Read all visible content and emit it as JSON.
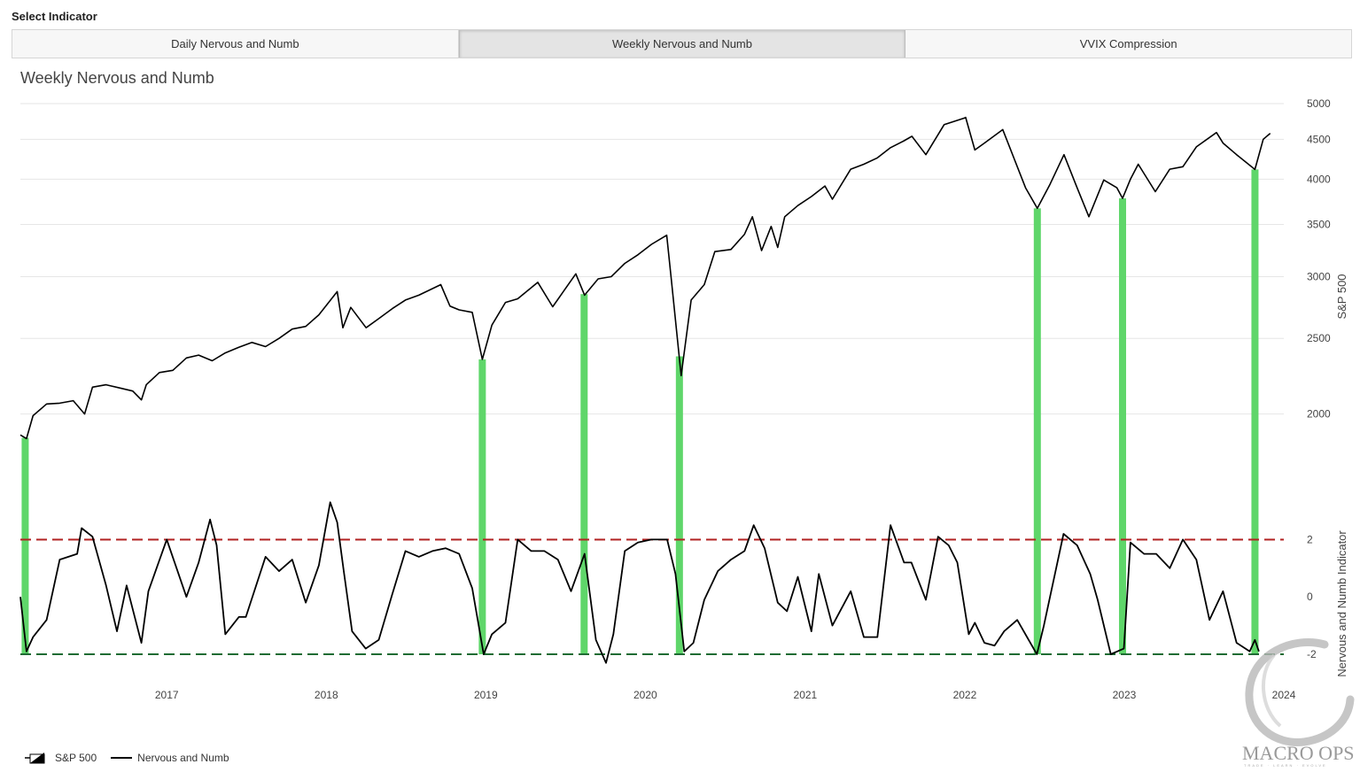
{
  "header": {
    "select_label": "Select Indicator"
  },
  "tabs": [
    {
      "label": "Daily Nervous and Numb",
      "active": false
    },
    {
      "label": "Weekly Nervous and Numb",
      "active": true
    },
    {
      "label": "VVIX Compression",
      "active": false
    }
  ],
  "legend": {
    "sp500": "S&P 500",
    "indicator": "Nervous and Numb"
  },
  "watermark": {
    "brand": "MACRO OPS",
    "tagline": "TRADE · LEARN · EVOLVE"
  },
  "colors": {
    "sp500_line": "#000000",
    "indicator_line": "#000000",
    "signal_bar": "#5fd66a",
    "upper_threshold": "#b22222",
    "lower_threshold": "#1e6b33",
    "grid": "#e6e6e6"
  },
  "chart_data": {
    "type": "line",
    "title": "Weekly Nervous and Numb",
    "y1label": "S&P 500",
    "y2label": "Nervous and Numb Indicator",
    "x_ticks": [
      "2017",
      "2018",
      "2019",
      "2020",
      "2021",
      "2022",
      "2023",
      "2024"
    ],
    "y1_ticks": [
      5000,
      4500,
      4000,
      3500,
      3000,
      2500,
      2000
    ],
    "y1_scale": "log",
    "y1lim": [
      1600,
      5000
    ],
    "y2_ticks": [
      2,
      0,
      -2
    ],
    "y2lim": [
      -2.4,
      2.6
    ],
    "xlim": [
      "2016-02-01",
      "2024-01-01"
    ],
    "thresholds": [
      {
        "value": 2,
        "style": "dashed",
        "color": "upper"
      },
      {
        "value": -2,
        "style": "dashed",
        "color": "lower"
      }
    ],
    "series": [
      {
        "name": "S&P 500",
        "x": [
          "2016-02-01",
          "2016-02-15",
          "2016-03-01",
          "2016-04-01",
          "2016-05-01",
          "2016-06-01",
          "2016-06-27",
          "2016-07-15",
          "2016-08-15",
          "2016-09-15",
          "2016-10-15",
          "2016-11-04",
          "2016-11-15",
          "2016-12-15",
          "2017-01-15",
          "2017-02-15",
          "2017-03-15",
          "2017-04-15",
          "2017-05-15",
          "2017-06-15",
          "2017-07-15",
          "2017-08-15",
          "2017-09-15",
          "2017-10-15",
          "2017-11-15",
          "2017-12-15",
          "2018-01-26",
          "2018-02-08",
          "2018-02-26",
          "2018-04-02",
          "2018-05-01",
          "2018-06-01",
          "2018-07-01",
          "2018-08-01",
          "2018-09-20",
          "2018-10-11",
          "2018-11-01",
          "2018-12-01",
          "2018-12-24",
          "2019-01-15",
          "2019-02-15",
          "2019-03-15",
          "2019-04-30",
          "2019-06-03",
          "2019-07-26",
          "2019-08-15",
          "2019-09-15",
          "2019-10-15",
          "2019-11-15",
          "2019-12-15",
          "2020-01-15",
          "2020-02-19",
          "2020-03-01",
          "2020-03-23",
          "2020-04-15",
          "2020-05-15",
          "2020-06-08",
          "2020-07-15",
          "2020-08-15",
          "2020-09-02",
          "2020-09-23",
          "2020-10-15",
          "2020-10-30",
          "2020-11-15",
          "2020-12-15",
          "2021-01-15",
          "2021-02-15",
          "2021-03-04",
          "2021-04-15",
          "2021-05-15",
          "2021-06-15",
          "2021-07-15",
          "2021-08-15",
          "2021-09-02",
          "2021-10-04",
          "2021-11-15",
          "2021-12-31",
          "2022-01-03",
          "2022-01-24",
          "2022-02-15",
          "2022-03-29",
          "2022-05-20",
          "2022-06-16",
          "2022-07-15",
          "2022-08-16",
          "2022-09-15",
          "2022-10-12",
          "2022-11-15",
          "2022-12-15",
          "2022-12-28",
          "2023-01-15",
          "2023-02-02",
          "2023-03-13",
          "2023-04-15",
          "2023-05-15",
          "2023-06-15",
          "2023-07-31",
          "2023-08-15",
          "2023-09-15",
          "2023-10-27",
          "2023-11-15",
          "2023-12-01"
        ],
        "values": [
          1880,
          1860,
          1990,
          2060,
          2065,
          2080,
          2000,
          2165,
          2180,
          2160,
          2140,
          2085,
          2180,
          2260,
          2275,
          2360,
          2380,
          2340,
          2395,
          2435,
          2470,
          2440,
          2500,
          2570,
          2590,
          2680,
          2870,
          2580,
          2740,
          2580,
          2650,
          2730,
          2800,
          2840,
          2930,
          2750,
          2720,
          2700,
          2350,
          2600,
          2780,
          2810,
          2950,
          2745,
          3025,
          2840,
          2980,
          3000,
          3120,
          3200,
          3300,
          3390,
          2960,
          2240,
          2800,
          2930,
          3230,
          3250,
          3400,
          3580,
          3240,
          3480,
          3270,
          3580,
          3700,
          3800,
          3920,
          3770,
          4120,
          4180,
          4260,
          4390,
          4480,
          4540,
          4300,
          4700,
          4790,
          4800,
          4360,
          4450,
          4630,
          3900,
          3670,
          3940,
          4300,
          3900,
          3580,
          3990,
          3900,
          3780,
          4000,
          4180,
          3855,
          4120,
          4150,
          4400,
          4590,
          4450,
          4300,
          4117,
          4500,
          4580
        ]
      },
      {
        "name": "Nervous and Numb",
        "x": [
          "2016-02-01",
          "2016-02-15",
          "2016-03-01",
          "2016-04-01",
          "2016-05-01",
          "2016-06-10",
          "2016-06-20",
          "2016-07-15",
          "2016-08-15",
          "2016-09-09",
          "2016-10-01",
          "2016-11-04",
          "2016-11-20",
          "2017-01-01",
          "2017-02-15",
          "2017-03-15",
          "2017-04-10",
          "2017-04-25",
          "2017-05-15",
          "2017-06-15",
          "2017-07-01",
          "2017-08-15",
          "2017-09-15",
          "2017-10-15",
          "2017-11-15",
          "2017-12-15",
          "2018-01-10",
          "2018-01-26",
          "2018-02-10",
          "2018-03-01",
          "2018-04-01",
          "2018-05-01",
          "2018-06-01",
          "2018-07-01",
          "2018-08-01",
          "2018-09-01",
          "2018-10-01",
          "2018-11-01",
          "2018-12-01",
          "2018-12-27",
          "2019-01-15",
          "2019-02-15",
          "2019-03-15",
          "2019-04-15",
          "2019-05-15",
          "2019-06-15",
          "2019-07-15",
          "2019-08-15",
          "2019-09-10",
          "2019-10-03",
          "2019-10-20",
          "2019-11-15",
          "2019-12-15",
          "2020-01-15",
          "2020-02-20",
          "2020-03-10",
          "2020-03-30",
          "2020-04-20",
          "2020-05-15",
          "2020-06-15",
          "2020-07-15",
          "2020-08-15",
          "2020-09-05",
          "2020-09-30",
          "2020-10-30",
          "2020-11-20",
          "2020-12-15",
          "2021-01-15",
          "2021-02-01",
          "2021-03-04",
          "2021-04-15",
          "2021-05-15",
          "2021-06-15",
          "2021-07-15",
          "2021-08-15",
          "2021-09-01",
          "2021-10-04",
          "2021-11-01",
          "2021-11-25",
          "2021-12-15",
          "2022-01-10",
          "2022-01-24",
          "2022-02-15",
          "2022-03-10",
          "2022-04-01",
          "2022-05-01",
          "2022-06-15",
          "2022-07-01",
          "2022-08-15",
          "2022-09-15",
          "2022-10-15",
          "2022-11-01",
          "2022-12-01",
          "2022-12-31",
          "2023-01-15",
          "2023-02-15",
          "2023-03-15",
          "2023-04-15",
          "2023-05-15",
          "2023-06-15",
          "2023-07-15",
          "2023-08-15",
          "2023-09-15",
          "2023-10-15",
          "2023-10-27",
          "2023-11-05"
        ],
        "values": [
          0.0,
          -1.9,
          -1.4,
          -0.8,
          1.3,
          1.5,
          2.4,
          2.1,
          0.4,
          -1.2,
          0.4,
          -1.6,
          0.2,
          2.0,
          0.0,
          1.2,
          2.7,
          1.8,
          -1.3,
          -0.7,
          -0.7,
          1.4,
          0.9,
          1.3,
          -0.2,
          1.1,
          3.3,
          2.6,
          0.9,
          -1.2,
          -1.8,
          -1.5,
          0.1,
          1.6,
          1.4,
          1.6,
          1.7,
          1.5,
          0.3,
          -2.0,
          -1.3,
          -0.9,
          2.0,
          1.6,
          1.6,
          1.3,
          0.2,
          1.5,
          -1.5,
          -2.3,
          -1.3,
          1.6,
          1.9,
          2.0,
          2.0,
          0.8,
          -1.9,
          -1.6,
          -0.1,
          0.9,
          1.3,
          1.6,
          2.5,
          1.7,
          -0.2,
          -0.5,
          0.7,
          -1.2,
          0.8,
          -1.0,
          0.2,
          -1.4,
          -1.4,
          2.5,
          1.2,
          1.2,
          -0.1,
          2.1,
          1.8,
          1.2,
          -1.3,
          -0.9,
          -1.6,
          -1.7,
          -1.2,
          -0.8,
          -2.0,
          -1.0,
          2.2,
          1.8,
          0.8,
          -0.1,
          -2.0,
          -1.8,
          1.9,
          1.5,
          1.5,
          1.0,
          2.0,
          1.3,
          -0.8,
          0.2,
          -1.6,
          -1.9,
          -1.5,
          -1.9
        ]
      }
    ],
    "signal_dates": [
      "2016-02-12",
      "2018-12-24",
      "2019-08-14",
      "2020-03-19",
      "2022-06-16",
      "2022-12-28",
      "2023-10-27"
    ]
  }
}
